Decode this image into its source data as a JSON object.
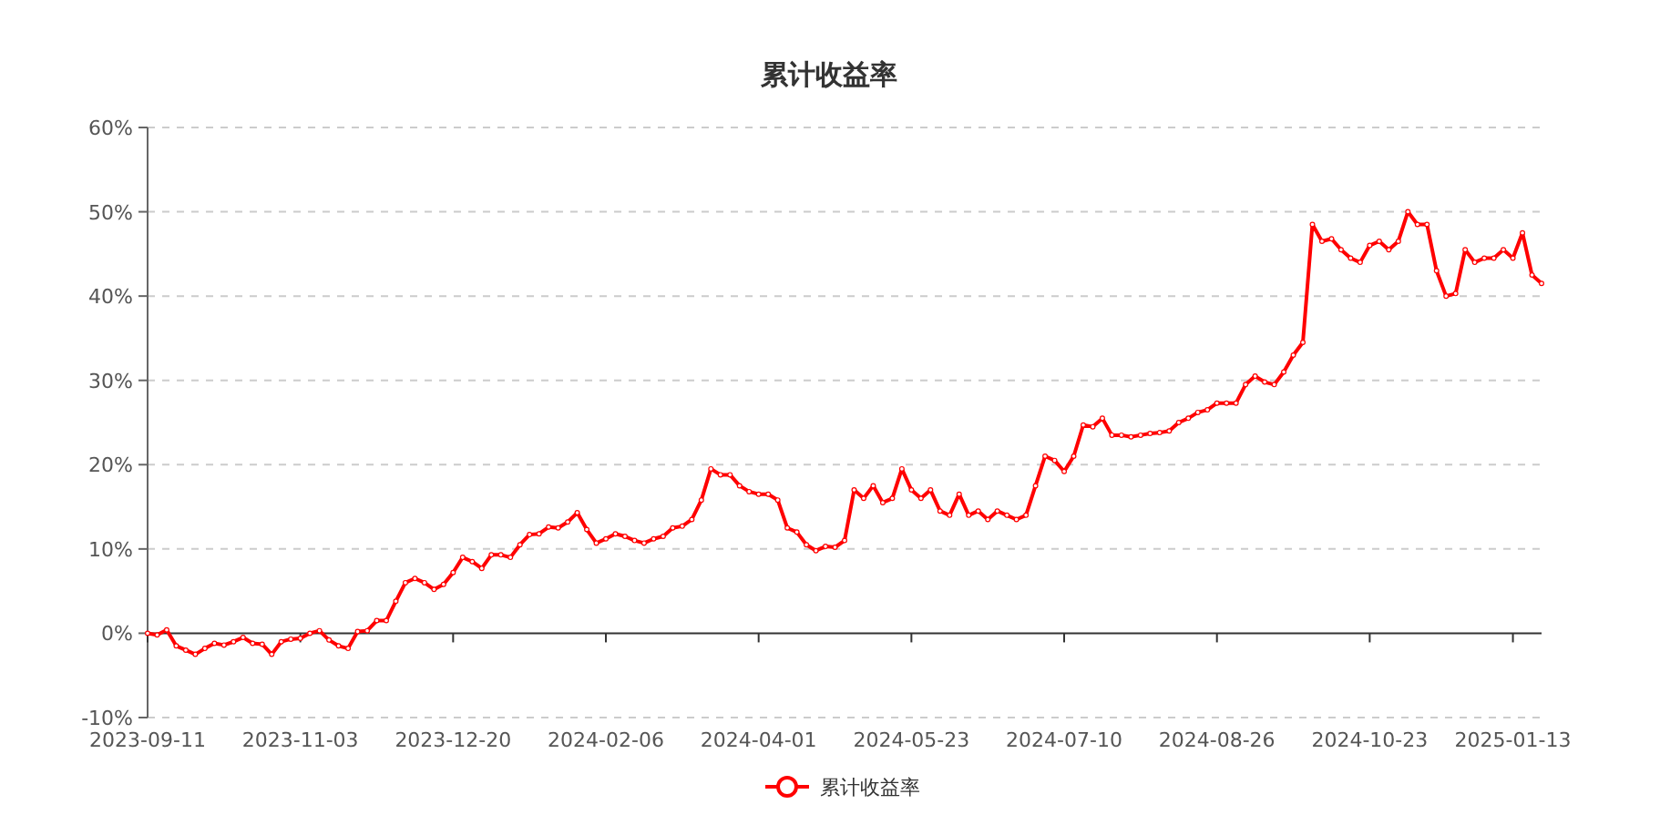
{
  "chart_data": {
    "type": "line",
    "title": "累计收益率",
    "categories": [
      "2023-09-11",
      null,
      null,
      null,
      null,
      null,
      null,
      null,
      null,
      null,
      null,
      null,
      null,
      null,
      null,
      null,
      "2023-11-03",
      null,
      null,
      null,
      null,
      null,
      null,
      null,
      null,
      null,
      null,
      null,
      null,
      null,
      null,
      null,
      "2023-12-20",
      null,
      null,
      null,
      null,
      null,
      null,
      null,
      null,
      null,
      null,
      null,
      null,
      null,
      null,
      null,
      "2024-02-06",
      null,
      null,
      null,
      null,
      null,
      null,
      null,
      null,
      null,
      null,
      null,
      null,
      null,
      null,
      null,
      "2024-04-01",
      null,
      null,
      null,
      null,
      null,
      null,
      null,
      null,
      null,
      null,
      null,
      null,
      null,
      null,
      null,
      "2024-05-23",
      null,
      null,
      null,
      null,
      null,
      null,
      null,
      null,
      null,
      null,
      null,
      null,
      null,
      null,
      null,
      "2024-07-10",
      null,
      null,
      null,
      null,
      null,
      null,
      null,
      null,
      null,
      null,
      null,
      null,
      null,
      null,
      null,
      "2024-08-26",
      null,
      null,
      null,
      null,
      null,
      null,
      null,
      null,
      null,
      null,
      null,
      null,
      null,
      null,
      null,
      "2024-10-23",
      null,
      null,
      null,
      null,
      null,
      null,
      null,
      null,
      null,
      null,
      null,
      null,
      null,
      null,
      "2025-01-13",
      null,
      null,
      null
    ],
    "series": [
      {
        "name": "累计收益率",
        "color": "#ff0000",
        "values": [
          0,
          -0.2,
          0.4,
          -1.5,
          -2.0,
          -2.5,
          -1.8,
          -1.2,
          -1.4,
          -1.0,
          -0.5,
          -1.2,
          -1.3,
          -2.5,
          -1.0,
          -0.7,
          -0.6,
          0.0,
          0.3,
          -0.8,
          -1.5,
          -1.8,
          0.2,
          0.3,
          1.5,
          1.5,
          3.8,
          6.0,
          6.5,
          6.0,
          5.2,
          5.8,
          7.2,
          9.0,
          8.5,
          7.7,
          9.3,
          9.3,
          9.0,
          10.5,
          11.7,
          11.8,
          12.6,
          12.5,
          13.2,
          14.3,
          12.3,
          10.7,
          11.2,
          11.8,
          11.5,
          11.0,
          10.7,
          11.2,
          11.5,
          12.5,
          12.7,
          13.5,
          15.8,
          19.5,
          18.8,
          18.8,
          17.5,
          16.8,
          16.5,
          16.5,
          15.8,
          12.5,
          12.0,
          10.5,
          9.8,
          10.3,
          10.2,
          11.0,
          17.0,
          16.0,
          17.5,
          15.5,
          16.0,
          19.5,
          17.0,
          16.0,
          17.0,
          14.5,
          14.0,
          16.5,
          14.0,
          14.5,
          13.5,
          14.5,
          14.0,
          13.5,
          14.0,
          17.5,
          21.0,
          20.5,
          19.2,
          21.0,
          24.7,
          24.5,
          25.5,
          23.5,
          23.5,
          23.3,
          23.5,
          23.7,
          23.8,
          24.0,
          25.0,
          25.5,
          26.2,
          26.5,
          27.3,
          27.3,
          27.3,
          29.5,
          30.5,
          29.8,
          29.5,
          31.0,
          33.0,
          34.5,
          48.5,
          46.5,
          46.8,
          45.5,
          44.5,
          44.0,
          46.0,
          46.5,
          45.5,
          46.5,
          50.0,
          48.5,
          48.5,
          43.0,
          40.0,
          40.3,
          45.5,
          44.0,
          44.5,
          44.5,
          45.5,
          44.5,
          47.5,
          42.5,
          41.5
        ]
      }
    ],
    "ylim": [
      -10,
      60
    ],
    "yticks": [
      {
        "value": -10,
        "label": "-10%"
      },
      {
        "value": 0,
        "label": "0%"
      },
      {
        "value": 10,
        "label": "10%"
      },
      {
        "value": 20,
        "label": "20%"
      },
      {
        "value": 30,
        "label": "30%"
      },
      {
        "value": 40,
        "label": "40%"
      },
      {
        "value": 50,
        "label": "50%"
      },
      {
        "value": 60,
        "label": "60%"
      }
    ],
    "grid": "y",
    "legend": "bottom",
    "marker": "circle",
    "line_style": "solid"
  }
}
